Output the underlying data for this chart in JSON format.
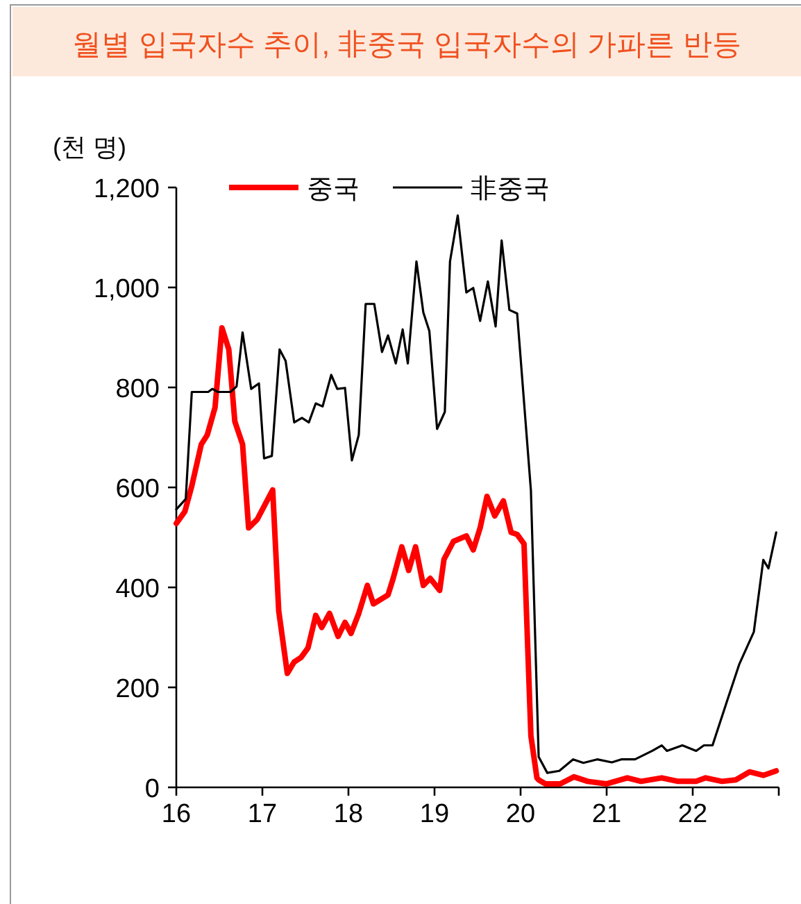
{
  "chart_data": {
    "type": "line",
    "title": "월별 입국자수 추이, 非중국 입국자수의 가파른 반등",
    "ylabel": "(천 명)",
    "legend": "top",
    "grid": false,
    "xlim": [
      2016,
      2023
    ],
    "xticks": [
      {
        "value": 2016,
        "label": "16"
      },
      {
        "value": 2017,
        "label": "17"
      },
      {
        "value": 2018,
        "label": "18"
      },
      {
        "value": 2019,
        "label": "19"
      },
      {
        "value": 2020,
        "label": "20"
      },
      {
        "value": 2021,
        "label": "21"
      },
      {
        "value": 2022,
        "label": "22"
      },
      {
        "value": 2023,
        "label": null
      }
    ],
    "ylim": [
      0,
      1200
    ],
    "yticks": [
      0,
      200,
      400,
      600,
      800,
      {
        "value": 1000,
        "label": "1,000"
      },
      {
        "value": 1200,
        "label": "1,200"
      }
    ],
    "series": [
      {
        "name": "중국",
        "color": "#ff0000",
        "x": [
          2016.0,
          2016.1,
          2016.18,
          2016.29,
          2016.36,
          2016.45,
          2016.53,
          2016.61,
          2016.68,
          2016.77,
          2016.84,
          2016.94,
          2017.12,
          2017.19,
          2017.29,
          2017.37,
          2017.45,
          2017.53,
          2017.62,
          2017.69,
          2017.78,
          2017.88,
          2017.96,
          2018.03,
          2018.12,
          2018.22,
          2018.29,
          2018.46,
          2018.52,
          2018.62,
          2018.7,
          2018.78,
          2018.87,
          2018.95,
          2019.06,
          2019.11,
          2019.22,
          2019.37,
          2019.45,
          2019.53,
          2019.61,
          2019.7,
          2019.8,
          2019.89,
          2019.96,
          2020.04,
          2020.12,
          2020.19,
          2020.21,
          2020.29,
          2020.46,
          2020.62,
          2020.78,
          2021.0,
          2021.24,
          2021.4,
          2021.64,
          2021.83,
          2022.04,
          2022.15,
          2022.34,
          2022.5,
          2022.66,
          2022.82,
          2022.97
        ],
        "values": [
          528,
          552,
          603,
          686,
          705,
          760,
          919,
          876,
          732,
          686,
          519,
          536,
          595,
          353,
          228,
          251,
          260,
          279,
          344,
          320,
          348,
          302,
          330,
          308,
          348,
          404,
          367,
          385,
          418,
          481,
          434,
          481,
          404,
          418,
          394,
          456,
          492,
          503,
          475,
          519,
          582,
          543,
          573,
          510,
          506,
          487,
          103,
          19,
          15,
          7,
          7,
          21,
          12,
          7,
          19,
          12,
          19,
          12,
          12,
          19,
          12,
          15,
          31,
          24,
          33
        ]
      },
      {
        "name": "非중국",
        "color": "#000000",
        "x": [
          2016.0,
          2016.11,
          2016.18,
          2016.37,
          2016.42,
          2016.48,
          2016.63,
          2016.7,
          2016.77,
          2016.87,
          2016.96,
          2017.02,
          2017.11,
          2017.2,
          2017.27,
          2017.37,
          2017.46,
          2017.54,
          2017.62,
          2017.7,
          2017.8,
          2017.87,
          2017.96,
          2018.04,
          2018.12,
          2018.2,
          2018.3,
          2018.39,
          2018.46,
          2018.55,
          2018.63,
          2018.69,
          2018.79,
          2018.87,
          2018.94,
          2019.03,
          2019.12,
          2019.18,
          2019.27,
          2019.37,
          2019.45,
          2019.53,
          2019.62,
          2019.71,
          2019.78,
          2019.87,
          2019.96,
          2020.12,
          2020.21,
          2020.31,
          2020.45,
          2020.61,
          2020.73,
          2020.89,
          2021.06,
          2021.17,
          2021.33,
          2021.53,
          2021.64,
          2021.7,
          2021.88,
          2022.04,
          2022.13,
          2022.23,
          2022.39,
          2022.54,
          2022.71,
          2022.82,
          2022.88,
          2022.97
        ],
        "values": [
          556,
          577,
          791,
          791,
          797,
          791,
          791,
          802,
          910,
          797,
          808,
          658,
          663,
          876,
          853,
          730,
          739,
          730,
          768,
          762,
          825,
          797,
          799,
          654,
          705,
          967,
          967,
          871,
          904,
          848,
          916,
          848,
          1052,
          950,
          913,
          717,
          751,
          1052,
          1144,
          990,
          999,
          933,
          1012,
          922,
          1094,
          955,
          948,
          594,
          61,
          29,
          33,
          56,
          49,
          56,
          50,
          56,
          56,
          73,
          84,
          73,
          84,
          73,
          84,
          84,
          168,
          246,
          311,
          455,
          438,
          510
        ]
      }
    ]
  }
}
